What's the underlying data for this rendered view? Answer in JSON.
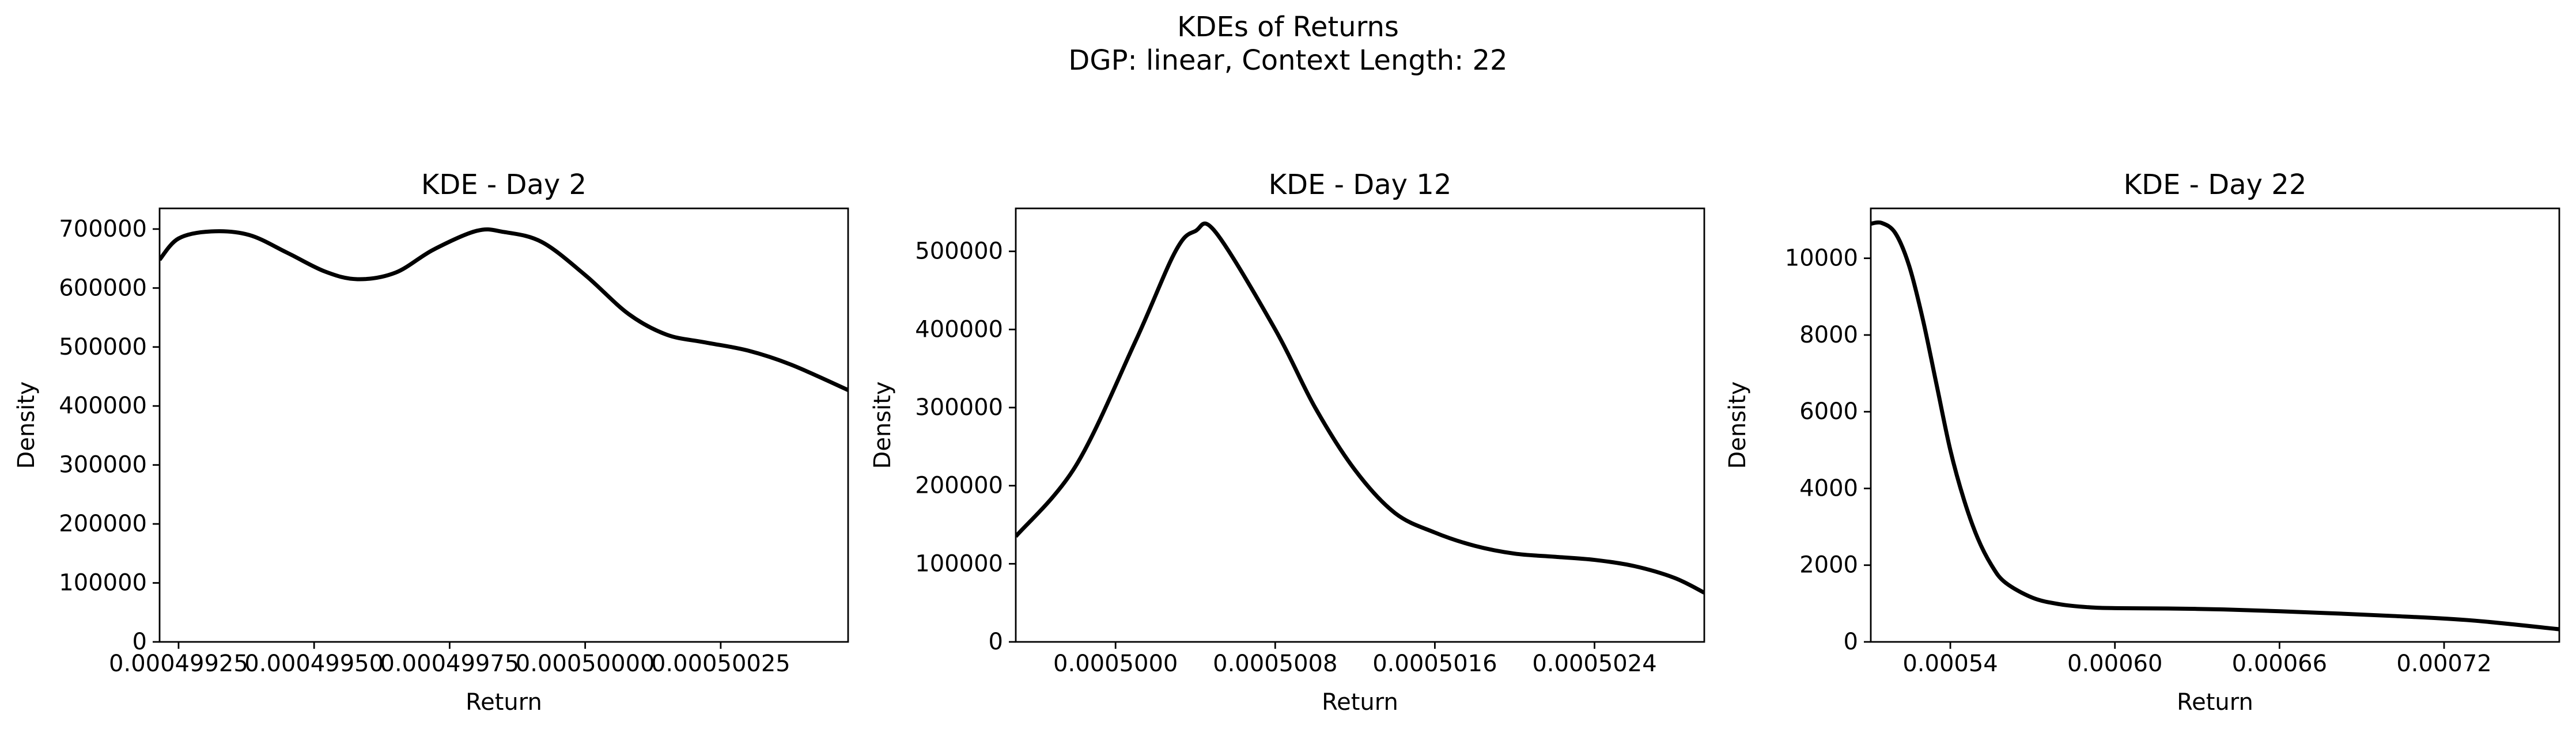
{
  "figure": {
    "title": "KDEs of Returns",
    "subtitle": "DGP: linear, Context Length: 22"
  },
  "chart_data": [
    {
      "type": "line",
      "title": "KDE - Day 2",
      "xlabel": "Return",
      "ylabel": "Density",
      "xlim": [
        0.000499215,
        0.000500485
      ],
      "ylim": [
        0,
        735000
      ],
      "xticks": [
        0.00049925,
        0.0004995,
        0.00049975,
        0.0005,
        0.00050025
      ],
      "xtick_labels": [
        "0.00049925",
        "0.00049950",
        "0.00049975",
        "0.00050000",
        "0.00050025"
      ],
      "yticks": [
        0,
        100000,
        200000,
        300000,
        400000,
        500000,
        600000,
        700000
      ],
      "ytick_labels": [
        "0",
        "100000",
        "200000",
        "300000",
        "400000",
        "500000",
        "600000",
        "700000"
      ],
      "color": "#000000",
      "series": [
        {
          "x": [
            0.000499215,
            0.00049925,
            0.00049931,
            0.00049938,
            0.00049945,
            0.00049952,
            0.00049958,
            0.00049965,
            0.00049972,
            0.0004998,
            0.00049985,
            0.00049992,
            0.0005,
            0.00050008,
            0.00050015,
            0.00050022,
            0.0005003,
            0.00050038,
            0.000500485
          ],
          "y": [
            648000,
            684000,
            696000,
            690000,
            660000,
            628000,
            615000,
            626000,
            665000,
            697000,
            695000,
            678000,
            622000,
            556000,
            521000,
            508000,
            494000,
            470000,
            427000
          ]
        }
      ]
    },
    {
      "type": "line",
      "title": "KDE - Day 12",
      "xlabel": "Return",
      "ylabel": "Density",
      "xlim": [
        0.0004995,
        0.00050295
      ],
      "ylim": [
        0,
        555000
      ],
      "xticks": [
        0.0005,
        0.0005008,
        0.0005016,
        0.0005024
      ],
      "xtick_labels": [
        "0.0005000",
        "0.0005008",
        "0.0005016",
        "0.0005024"
      ],
      "yticks": [
        0,
        100000,
        200000,
        300000,
        400000,
        500000
      ],
      "ytick_labels": [
        "0",
        "100000",
        "200000",
        "300000",
        "400000",
        "500000"
      ],
      "color": "#000000",
      "series": [
        {
          "x": [
            0.0004995,
            0.0004998,
            0.0005001,
            0.0005003,
            0.0005004,
            0.0005005,
            0.0005008,
            0.000501,
            0.0005012,
            0.0005014,
            0.0005016,
            0.0005018,
            0.000502,
            0.0005022,
            0.0005024,
            0.0005026,
            0.0005028,
            0.00050295
          ],
          "y": [
            135000,
            225000,
            385000,
            500000,
            526000,
            525000,
            400000,
            300000,
            220000,
            165000,
            140000,
            123000,
            113000,
            109000,
            105000,
            97000,
            82000,
            63000
          ]
        }
      ]
    },
    {
      "type": "line",
      "title": "KDE - Day 22",
      "xlabel": "Return",
      "ylabel": "Density",
      "xlim": [
        0.000511,
        0.000762
      ],
      "ylim": [
        0,
        11300
      ],
      "xticks": [
        0.00054,
        0.0006,
        0.00066,
        0.00072
      ],
      "xtick_labels": [
        "0.00054",
        "0.00060",
        "0.00066",
        "0.00072"
      ],
      "yticks": [
        0,
        2000,
        4000,
        6000,
        8000,
        10000
      ],
      "ytick_labels": [
        "0",
        "2000",
        "4000",
        "6000",
        "8000",
        "10000"
      ],
      "color": "#000000",
      "series": [
        {
          "x": [
            0.000511,
            0.000515,
            0.00052,
            0.000525,
            0.00053,
            0.000535,
            0.00054,
            0.000545,
            0.00055,
            0.000555,
            0.00056,
            0.00057,
            0.00058,
            0.00059,
            0.0006,
            0.00063,
            0.00066,
            0.0007,
            0.00073,
            0.000762
          ],
          "y": [
            10900,
            10920,
            10650,
            9800,
            8400,
            6700,
            5000,
            3700,
            2700,
            2000,
            1550,
            1150,
            980,
            905,
            880,
            860,
            800,
            680,
            560,
            330
          ]
        }
      ]
    }
  ]
}
